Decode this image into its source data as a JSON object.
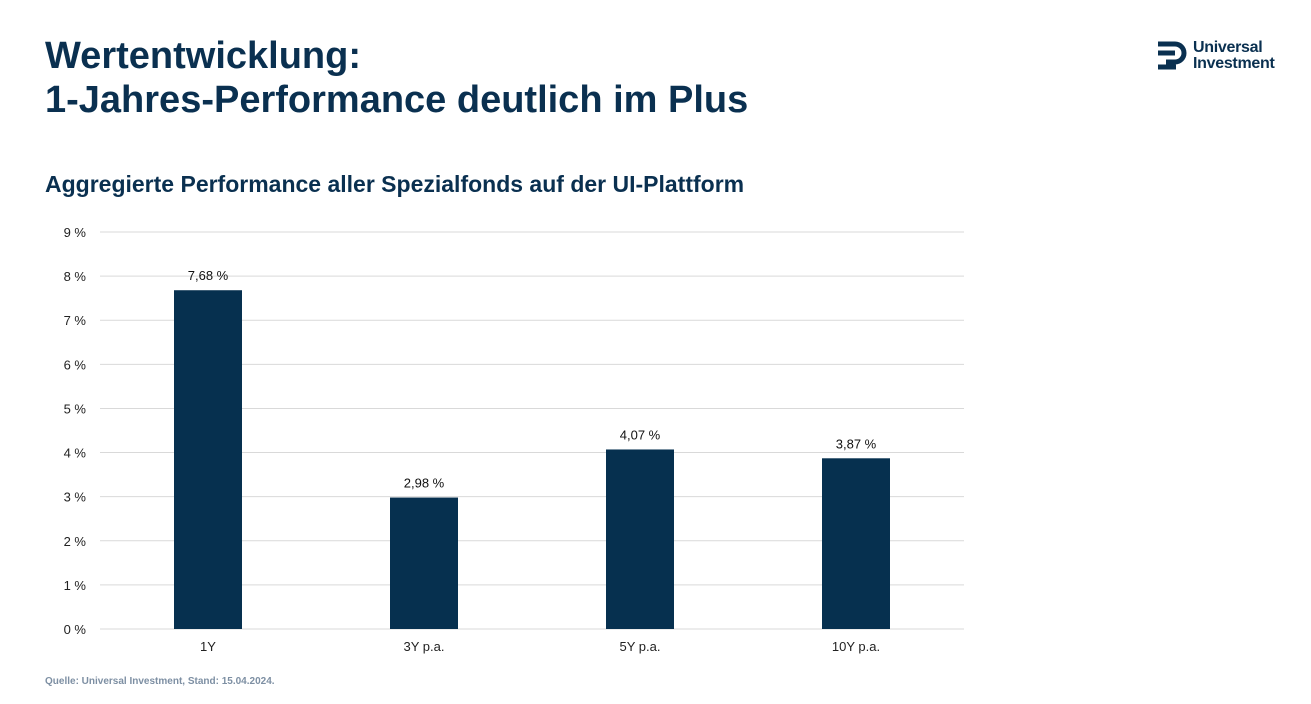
{
  "header": {
    "title_line1": "Wertentwicklung:",
    "title_line2": "1-Jahres-Performance deutlich im Plus"
  },
  "logo": {
    "line1": "Universal",
    "line2": "Investment"
  },
  "subtitle": "Aggregierte Performance aller Spezialfonds auf der UI-Plattform",
  "footnote": "Quelle: Universal Investment, Stand: 15.04.2024.",
  "colors": {
    "bar": "#06304f",
    "text": "#0a3050",
    "grid": "#d9d9d9",
    "footnote": "#7d8fa3"
  },
  "chart_data": {
    "type": "bar",
    "categories": [
      "1Y",
      "3Y p.a.",
      "5Y p.a.",
      "10Y p.a."
    ],
    "values": [
      7.68,
      2.98,
      4.07,
      3.87
    ],
    "data_labels": [
      "7,68 %",
      "2,98 %",
      "4,07 %",
      "3,87 %"
    ],
    "ylim": [
      0,
      9
    ],
    "yticks": [
      0,
      1,
      2,
      3,
      4,
      5,
      6,
      7,
      8,
      9
    ],
    "ytick_labels": [
      "0 %",
      "1 %",
      "2 %",
      "3 %",
      "4 %",
      "5 %",
      "6 %",
      "7 %",
      "8 %",
      "9 %"
    ],
    "title": "",
    "xlabel": "",
    "ylabel": "",
    "grid": true,
    "legend": "none"
  }
}
